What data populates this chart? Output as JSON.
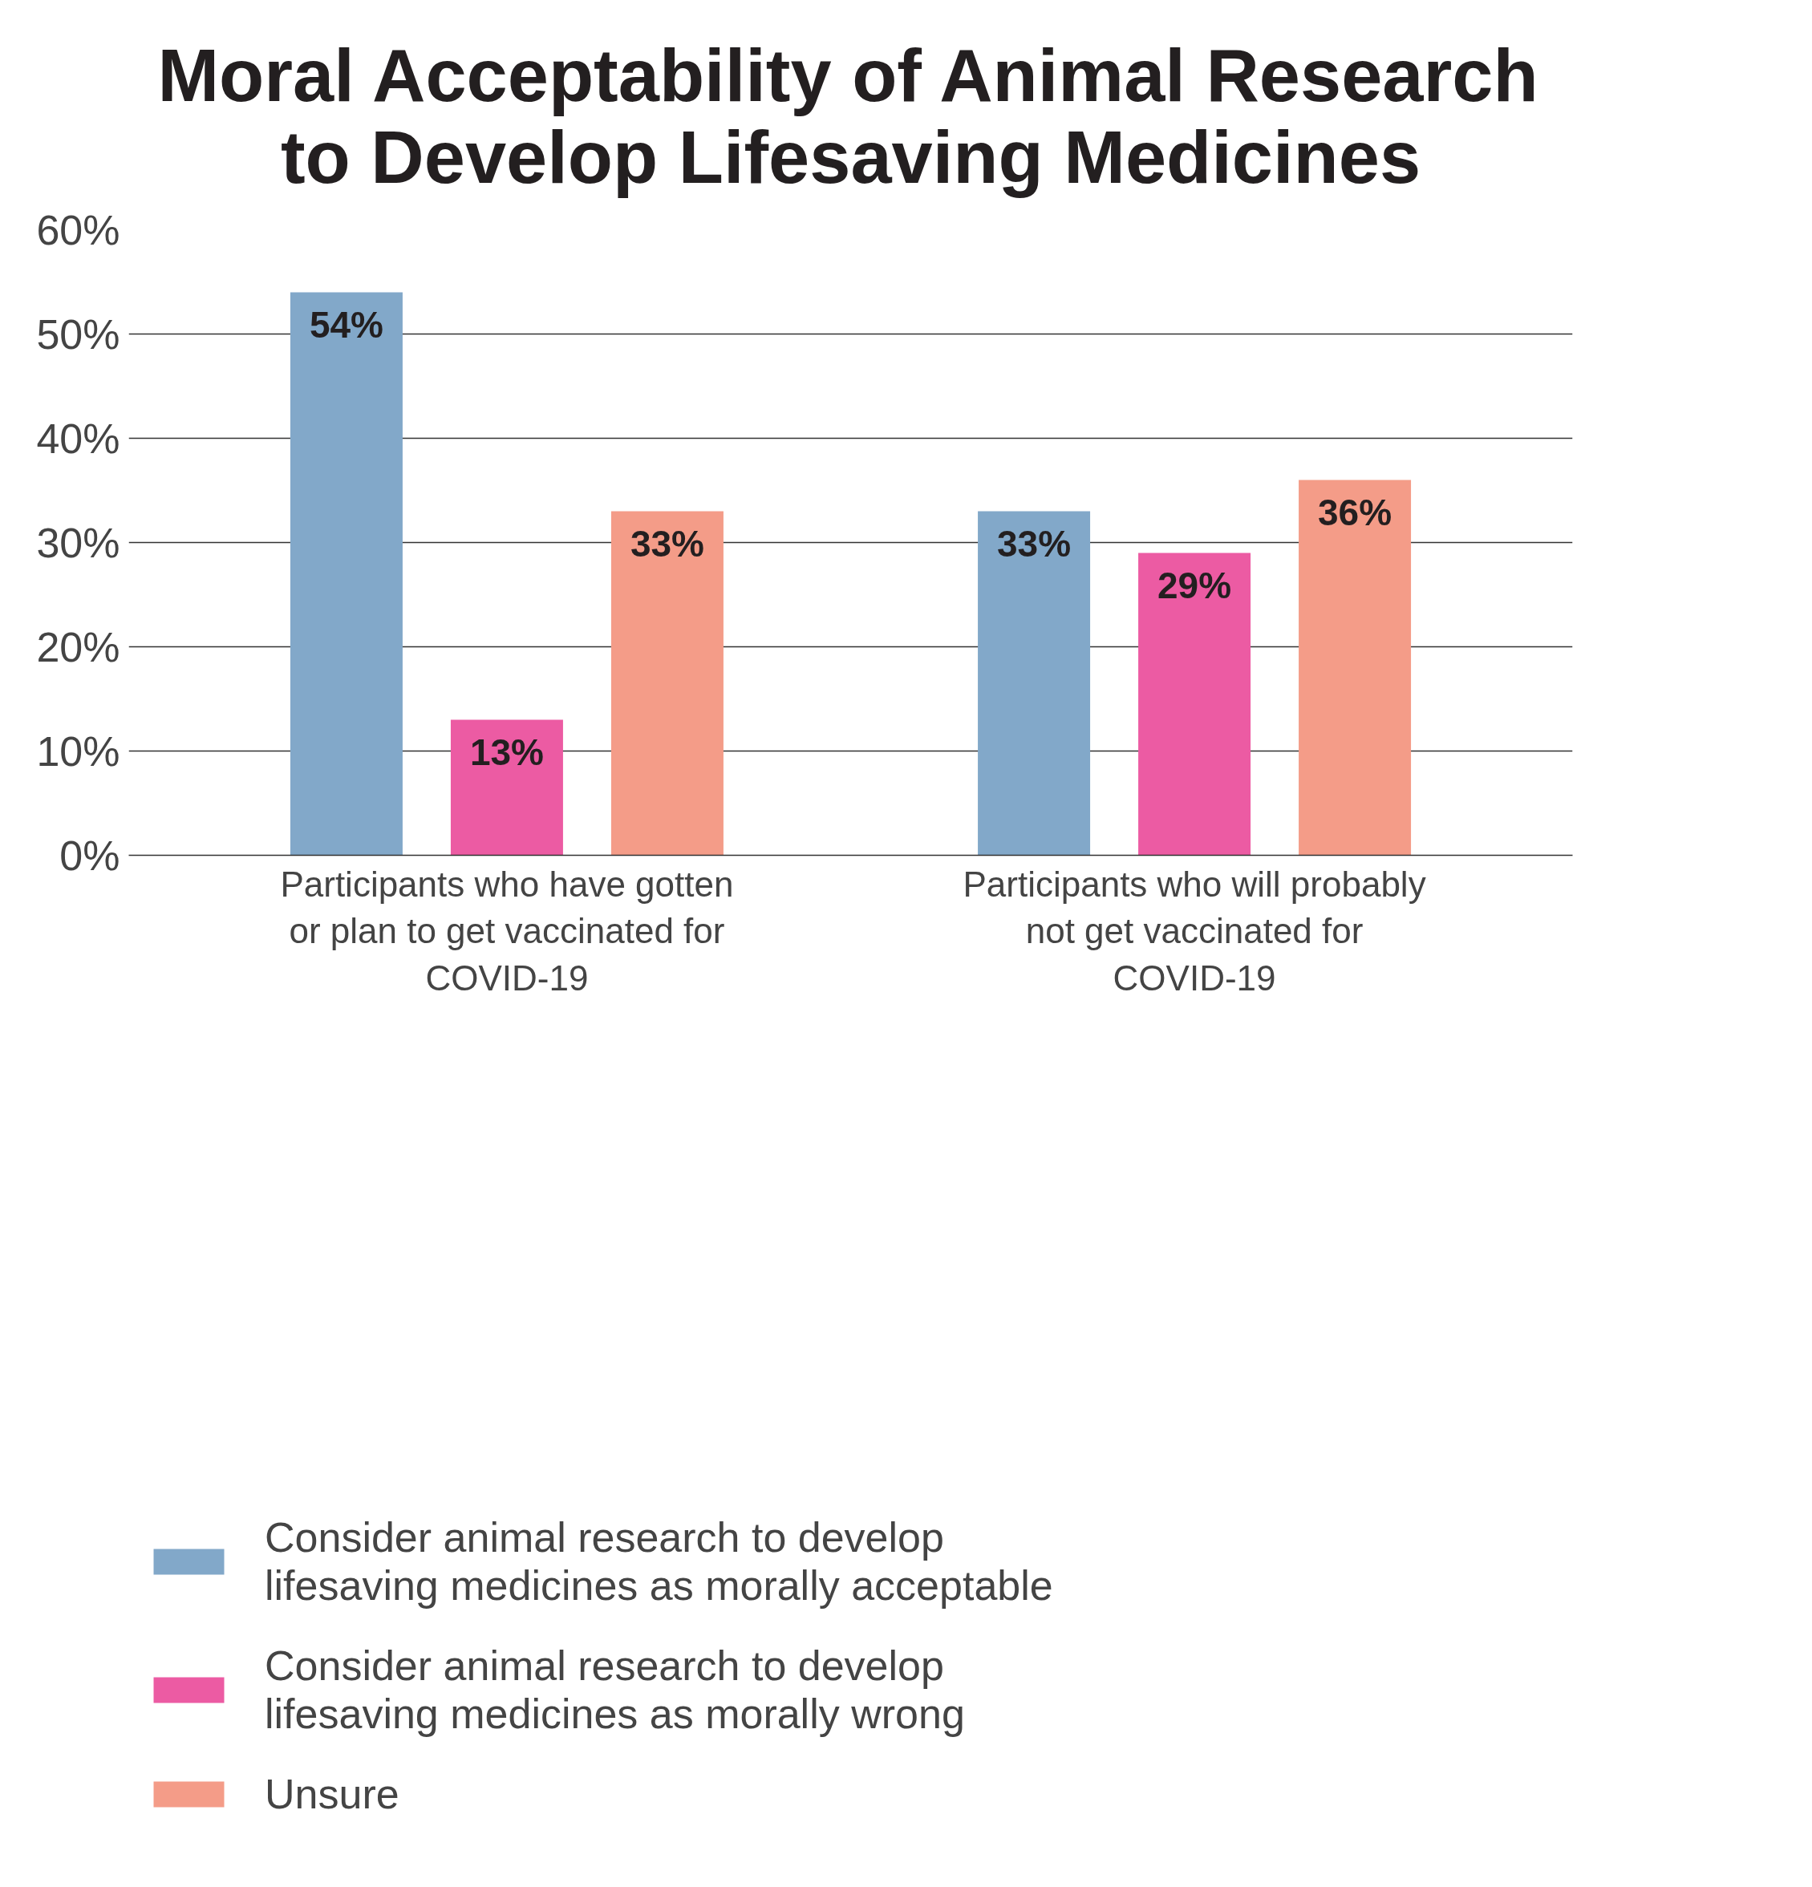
{
  "chart_data": {
    "type": "bar",
    "title": "Moral Acceptability of Animal Research to Develop Lifesaving Medicines",
    "categories": [
      "Participants who have gotten or plan to get vaccinated for COVID-19",
      "Participants who will probably not get vaccinated for COVID-19"
    ],
    "series": [
      {
        "name": "Consider animal research to develop lifesaving medicines as morally acceptable",
        "color": "#82a8c9",
        "values": [
          54,
          33
        ]
      },
      {
        "name": "Consider animal research to develop lifesaving medicines as morally wrong",
        "color": "#ec5ba3",
        "values": [
          13,
          29
        ]
      },
      {
        "name": "Unsure",
        "color": "#f49c88",
        "values": [
          33,
          36
        ]
      }
    ],
    "ylim": [
      0,
      60
    ],
    "yticks": [
      {
        "value": 0,
        "label": "0%"
      },
      {
        "value": 10,
        "label": "10%"
      },
      {
        "value": 20,
        "label": "20%"
      },
      {
        "value": 30,
        "label": "30%"
      },
      {
        "value": 40,
        "label": "40%"
      },
      {
        "value": 50,
        "label": "50%"
      },
      {
        "value": 60,
        "label": "60%"
      }
    ],
    "value_labels": [
      [
        "54%",
        "33%"
      ],
      [
        "13%",
        "29%"
      ],
      [
        "33%",
        "36%"
      ]
    ],
    "grid": "y",
    "legend": "bottom"
  }
}
